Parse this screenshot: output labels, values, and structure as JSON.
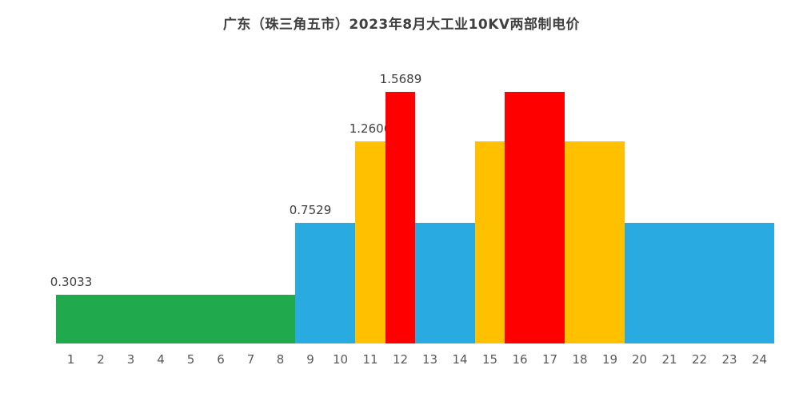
{
  "page": {
    "background": "#ffffff"
  },
  "chart_data": {
    "type": "bar",
    "title": "广东（珠三角五市）2023年8月大工业10KV两部制电价",
    "xlabel": "",
    "ylabel": "",
    "legend": "none",
    "grid": false,
    "ylim": [
      0,
      1.5689
    ],
    "categories": [
      "1",
      "2",
      "3",
      "4",
      "5",
      "6",
      "7",
      "8",
      "9",
      "10",
      "11",
      "12",
      "13",
      "14",
      "15",
      "16",
      "17",
      "18",
      "19",
      "20",
      "21",
      "22",
      "23",
      "24"
    ],
    "values": [
      0.3033,
      0.3033,
      0.3033,
      0.3033,
      0.3033,
      0.3033,
      0.3033,
      0.3033,
      0.7529,
      0.7529,
      1.2606,
      1.5689,
      0.7529,
      0.7529,
      1.2606,
      1.5689,
      1.5689,
      1.2606,
      1.2606,
      0.7529,
      0.7529,
      0.7529,
      0.7529,
      0.7529
    ],
    "colors": [
      "#21A94D",
      "#21A94D",
      "#21A94D",
      "#21A94D",
      "#21A94D",
      "#21A94D",
      "#21A94D",
      "#21A94D",
      "#29ABE2",
      "#29ABE2",
      "#FFC000",
      "#FF0000",
      "#29ABE2",
      "#29ABE2",
      "#FFC000",
      "#FF0000",
      "#FF0000",
      "#FFC000",
      "#FFC000",
      "#29ABE2",
      "#29ABE2",
      "#29ABE2",
      "#29ABE2",
      "#29ABE2"
    ],
    "palette": {
      "valley": "#21A94D",
      "flat": "#29ABE2",
      "peak": "#FFC000",
      "sharp_peak": "#FF0000"
    },
    "data_labels": [
      {
        "text": "0.3033",
        "index": 0
      },
      {
        "text": "0.7529",
        "index": 8
      },
      {
        "text": "1.2606",
        "index": 10
      },
      {
        "text": "1.5689",
        "index": 11
      }
    ]
  }
}
